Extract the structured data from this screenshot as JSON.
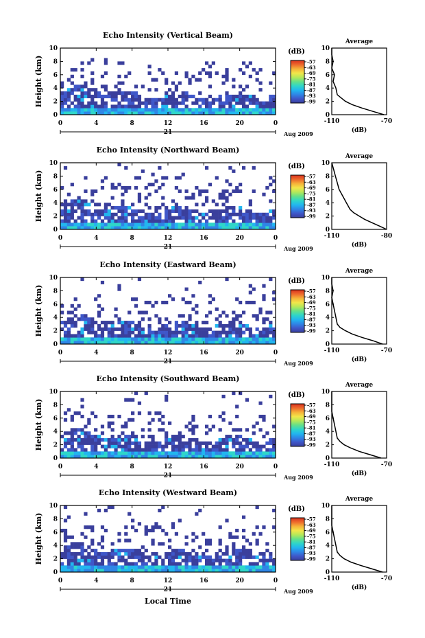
{
  "figure": {
    "x_label": "Local Time",
    "date_label": "Aug 2009",
    "day_label": "21",
    "y_label": "Height (km)",
    "colorbar_unit": "(dB)",
    "colorbar_ticks": [
      "-57",
      "-63",
      "-69",
      "-75",
      "-81",
      "-87",
      "-93",
      "-99"
    ],
    "colorbar_colors": [
      "#3a3f9c",
      "#3f57c9",
      "#2f86e6",
      "#22b6ef",
      "#2fd6c9",
      "#64e08a",
      "#b4e85a",
      "#f2e64a",
      "#f6b33a",
      "#ee6a2c",
      "#d8301f"
    ],
    "average_title": "Average",
    "average_xlabel": "(dB)",
    "x_ticks": [
      "0",
      "4",
      "8",
      "12",
      "16",
      "20",
      "0"
    ],
    "y_ticks": [
      "0",
      "2",
      "4",
      "6",
      "8",
      "10"
    ]
  },
  "panels": [
    {
      "title": "Echo Intensity (Vertical Beam)",
      "avg_x_ticks": [
        "-110",
        "-70"
      ]
    },
    {
      "title": "Echo Intensity (Northward Beam)",
      "avg_x_ticks": [
        "-110",
        "-80"
      ]
    },
    {
      "title": "Echo Intensity (Eastward Beam)",
      "avg_x_ticks": [
        "-110",
        "-70"
      ]
    },
    {
      "title": "Echo Intensity (Southward Beam)",
      "avg_x_ticks": [
        "-110",
        "-70"
      ]
    },
    {
      "title": "Echo Intensity (Westward Beam)",
      "avg_x_ticks": [
        "-110",
        "-70"
      ]
    }
  ],
  "chart_data": [
    {
      "type": "heatmap",
      "title": "Echo Intensity (Vertical Beam)",
      "xlabel": "Local Time",
      "ylabel": "Height (km)",
      "xlim": [
        0,
        24
      ],
      "ylim": [
        0,
        10
      ],
      "colorbar_range_db": [
        -99,
        -57
      ],
      "average_profile": {
        "type": "line",
        "title": "Average",
        "xlabel": "(dB)",
        "xlim": [
          -110,
          -70
        ],
        "ylim": [
          0,
          10
        ],
        "x": [
          -72,
          -80,
          -88,
          -95,
          -100,
          -103,
          -106,
          -107,
          -109,
          -108,
          -110,
          -109,
          -110,
          -111
        ],
        "y": [
          0,
          0.5,
          1,
          1.5,
          2,
          2.5,
          3,
          4,
          5,
          6,
          7,
          8,
          9,
          10
        ]
      }
    },
    {
      "type": "heatmap",
      "title": "Echo Intensity (Northward Beam)",
      "xlabel": "Local Time",
      "ylabel": "Height (km)",
      "xlim": [
        0,
        24
      ],
      "ylim": [
        0,
        10
      ],
      "colorbar_range_db": [
        -99,
        -57
      ],
      "average_profile": {
        "type": "line",
        "title": "Average",
        "xlabel": "(dB)",
        "xlim": [
          -110,
          -80
        ],
        "ylim": [
          0,
          10
        ],
        "x": [
          -80,
          -84,
          -88,
          -92,
          -95,
          -98,
          -100,
          -102,
          -104,
          -106,
          -107,
          -108,
          -109,
          -110
        ],
        "y": [
          0,
          0.5,
          1,
          1.5,
          2,
          2.5,
          3,
          4,
          5,
          6,
          7,
          8,
          9,
          10
        ]
      }
    },
    {
      "type": "heatmap",
      "title": "Echo Intensity (Eastward Beam)",
      "xlabel": "Local Time",
      "ylabel": "Height (km)",
      "xlim": [
        0,
        24
      ],
      "ylim": [
        0,
        10
      ],
      "colorbar_range_db": [
        -99,
        -57
      ],
      "average_profile": {
        "type": "line",
        "title": "Average",
        "xlabel": "(dB)",
        "xlim": [
          -110,
          -70
        ],
        "ylim": [
          0,
          10
        ],
        "x": [
          -73,
          -80,
          -88,
          -95,
          -100,
          -104,
          -106,
          -107,
          -108,
          -109,
          -110,
          -109,
          -110,
          -111
        ],
        "y": [
          0,
          0.5,
          1,
          1.5,
          2,
          2.5,
          3,
          4,
          5,
          6,
          7,
          8,
          9,
          10
        ]
      }
    },
    {
      "type": "heatmap",
      "title": "Echo Intensity (Southward Beam)",
      "xlabel": "Local Time",
      "ylabel": "Height (km)",
      "xlim": [
        0,
        24
      ],
      "ylim": [
        0,
        10
      ],
      "colorbar_range_db": [
        -99,
        -57
      ],
      "average_profile": {
        "type": "line",
        "title": "Average",
        "xlabel": "(dB)",
        "xlim": [
          -110,
          -70
        ],
        "ylim": [
          0,
          10
        ],
        "x": [
          -74,
          -82,
          -90,
          -96,
          -101,
          -104,
          -106,
          -107,
          -108,
          -109,
          -110,
          -111,
          -111,
          -112
        ],
        "y": [
          0,
          0.5,
          1,
          1.5,
          2,
          2.5,
          3,
          4,
          5,
          6,
          7,
          8,
          9,
          10
        ]
      }
    },
    {
      "type": "heatmap",
      "title": "Echo Intensity (Westward Beam)",
      "xlabel": "Local Time",
      "ylabel": "Height (km)",
      "xlim": [
        0,
        24
      ],
      "ylim": [
        0,
        10
      ],
      "colorbar_range_db": [
        -99,
        -57
      ],
      "average_profile": {
        "type": "line",
        "title": "Average",
        "xlabel": "(dB)",
        "xlim": [
          -110,
          -70
        ],
        "ylim": [
          0,
          10
        ],
        "x": [
          -73,
          -81,
          -89,
          -96,
          -101,
          -104,
          -106,
          -107,
          -108,
          -109,
          -110,
          -110,
          -111,
          -112
        ],
        "y": [
          0,
          0.5,
          1,
          1.5,
          2,
          2.5,
          3,
          4,
          5,
          6,
          7,
          8,
          9,
          10
        ]
      }
    }
  ]
}
